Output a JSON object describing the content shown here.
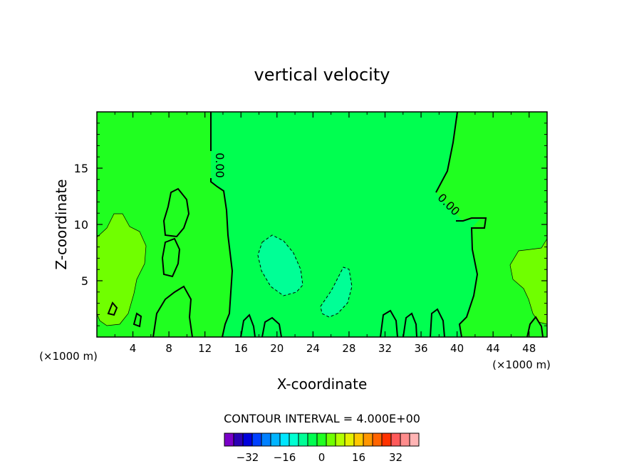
{
  "chart_data": {
    "type": "contour",
    "title": "vertical velocity",
    "xlabel": "X-coordinate",
    "ylabel": "Z-coordinate",
    "x_units_left": "(×1000 m)",
    "x_units_right": "(×1000 m)",
    "xlim": [
      0,
      50
    ],
    "ylim": [
      0,
      20
    ],
    "x_ticks": [
      4,
      8,
      12,
      16,
      20,
      24,
      28,
      32,
      36,
      40,
      44,
      48
    ],
    "y_ticks": [
      5,
      10,
      15
    ],
    "contour_labels": [
      "0.00",
      "0.00"
    ],
    "contour_interval_text": "CONTOUR INTERVAL = 4.000E+00",
    "colorbar": {
      "ticks": [
        -32,
        -16,
        0,
        16,
        32
      ],
      "tick_labels": [
        "−32",
        "−16",
        "0",
        "16",
        "32"
      ],
      "colors": [
        "#7a00c8",
        "#2a00b4",
        "#0000dc",
        "#0040ff",
        "#0080ff",
        "#00b4ff",
        "#00e6ff",
        "#00ffd2",
        "#00ff96",
        "#00ff50",
        "#20ff20",
        "#70ff00",
        "#b4ff00",
        "#e6f000",
        "#ffc800",
        "#ff9600",
        "#ff6400",
        "#ff3200",
        "#ff5a5a",
        "#ff8c8c",
        "#ffb4b4"
      ]
    },
    "colors": {
      "background": "#00ff50",
      "weak_positive": "#20ff20",
      "positive": "#70ff00",
      "weak_negative": "#00ff96"
    }
  }
}
